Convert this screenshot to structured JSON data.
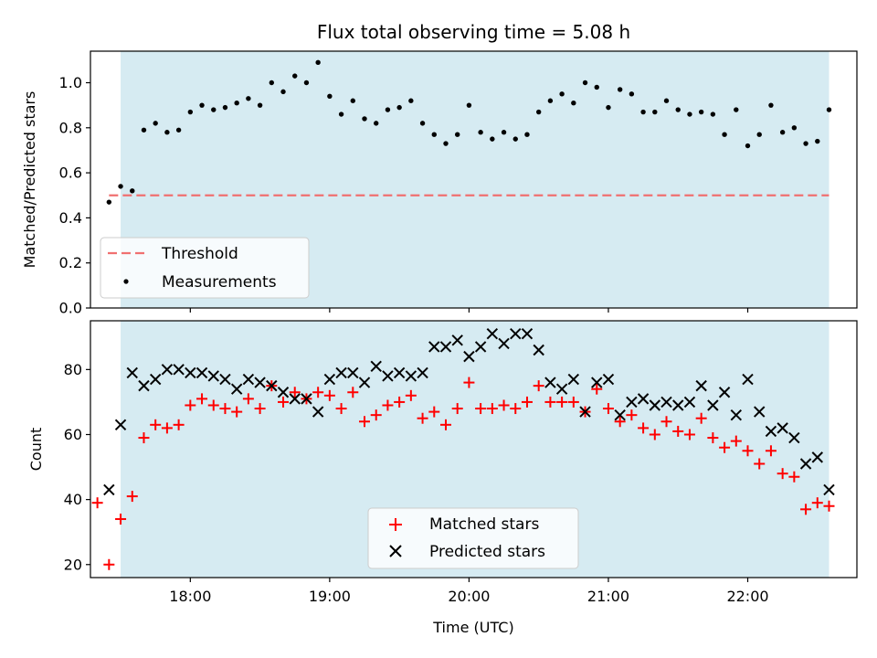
{
  "chart_data": [
    {
      "type": "scatter",
      "title": "Flux total observing time = 5.08 h",
      "xlabel": "",
      "ylabel": "Matched/Predicted stars",
      "xlim": [
        "17:17",
        "22:47"
      ],
      "ylim": [
        0,
        1.14
      ],
      "yticks": [
        "0.0",
        "0.2",
        "0.4",
        "0.6",
        "0.8",
        "1.0"
      ],
      "xticks": [
        "18:00",
        "19:00",
        "20:00",
        "21:00",
        "22:00"
      ],
      "shaded_span": [
        "17:30",
        "22:35"
      ],
      "threshold": {
        "name": "Threshold",
        "value": 0.5,
        "x_range": [
          "17:25",
          "22:35"
        ],
        "color": "#f07070"
      },
      "legend": {
        "position": "lower-left",
        "entries": [
          "Threshold",
          "Measurements"
        ]
      },
      "series": [
        {
          "name": "Measurements",
          "marker": "dot",
          "color": "#000000",
          "x": [
            "17:25",
            "17:30",
            "17:35",
            "17:40",
            "17:45",
            "17:50",
            "17:55",
            "18:00",
            "18:05",
            "18:10",
            "18:15",
            "18:20",
            "18:25",
            "18:30",
            "18:35",
            "18:40",
            "18:45",
            "18:50",
            "18:55",
            "19:00",
            "19:05",
            "19:10",
            "19:15",
            "19:20",
            "19:25",
            "19:30",
            "19:35",
            "19:40",
            "19:45",
            "19:50",
            "19:55",
            "20:00",
            "20:05",
            "20:10",
            "20:15",
            "20:20",
            "20:25",
            "20:30",
            "20:35",
            "20:40",
            "20:45",
            "20:50",
            "20:55",
            "21:00",
            "21:05",
            "21:10",
            "21:15",
            "21:20",
            "21:25",
            "21:30",
            "21:35",
            "21:40",
            "21:45",
            "21:50",
            "21:55",
            "22:00",
            "22:05",
            "22:10",
            "22:15",
            "22:20",
            "22:25",
            "22:30",
            "22:35"
          ],
          "y": [
            0.47,
            0.54,
            0.52,
            0.79,
            0.82,
            0.78,
            0.79,
            0.87,
            0.9,
            0.88,
            0.89,
            0.91,
            0.93,
            0.9,
            1.0,
            0.96,
            1.03,
            1.0,
            1.09,
            0.94,
            0.86,
            0.92,
            0.84,
            0.82,
            0.88,
            0.89,
            0.92,
            0.82,
            0.77,
            0.73,
            0.77,
            0.9,
            0.78,
            0.75,
            0.78,
            0.75,
            0.77,
            0.87,
            0.92,
            0.95,
            0.91,
            1.0,
            0.98,
            0.89,
            0.97,
            0.95,
            0.87,
            0.87,
            0.92,
            0.88,
            0.86,
            0.87,
            0.86,
            0.77,
            0.88,
            0.72,
            0.77,
            0.9,
            0.78,
            0.8,
            0.73,
            0.74,
            0.88
          ]
        }
      ]
    },
    {
      "type": "scatter",
      "title": "",
      "xlabel": "Time (UTC)",
      "ylabel": "Count",
      "xlim": [
        "17:17",
        "22:47"
      ],
      "ylim": [
        16,
        95
      ],
      "yticks": [
        "20",
        "40",
        "60",
        "80"
      ],
      "xticks": [
        "18:00",
        "19:00",
        "20:00",
        "21:00",
        "22:00"
      ],
      "shaded_span": [
        "17:30",
        "22:35"
      ],
      "legend": {
        "position": "lower-center",
        "entries": [
          "Matched stars",
          "Predicted stars"
        ]
      },
      "series": [
        {
          "name": "Matched stars",
          "marker": "plus",
          "color": "#ff0000",
          "x": [
            "17:20",
            "17:25",
            "17:30",
            "17:35",
            "17:40",
            "17:45",
            "17:50",
            "17:55",
            "18:00",
            "18:05",
            "18:10",
            "18:15",
            "18:20",
            "18:25",
            "18:30",
            "18:35",
            "18:40",
            "18:45",
            "18:50",
            "18:55",
            "19:00",
            "19:05",
            "19:10",
            "19:15",
            "19:20",
            "19:25",
            "19:30",
            "19:35",
            "19:40",
            "19:45",
            "19:50",
            "19:55",
            "20:00",
            "20:05",
            "20:10",
            "20:15",
            "20:20",
            "20:25",
            "20:30",
            "20:35",
            "20:40",
            "20:45",
            "20:50",
            "20:55",
            "21:00",
            "21:05",
            "21:10",
            "21:15",
            "21:20",
            "21:25",
            "21:30",
            "21:35",
            "21:40",
            "21:45",
            "21:50",
            "21:55",
            "22:00",
            "22:05",
            "22:10",
            "22:15",
            "22:20",
            "22:25",
            "22:30",
            "22:35"
          ],
          "y": [
            39,
            20,
            34,
            41,
            59,
            63,
            62,
            63,
            69,
            71,
            69,
            68,
            67,
            71,
            68,
            75,
            70,
            73,
            71,
            73,
            72,
            68,
            73,
            64,
            66,
            69,
            70,
            72,
            65,
            67,
            63,
            68,
            76,
            68,
            68,
            69,
            68,
            70,
            75,
            70,
            70,
            70,
            67,
            74,
            68,
            64,
            66,
            62,
            60,
            64,
            61,
            60,
            65,
            59,
            56,
            58,
            55,
            51,
            55,
            48,
            47,
            37,
            39,
            38
          ]
        },
        {
          "name": "Predicted stars",
          "marker": "x",
          "color": "#000000",
          "x": [
            "17:25",
            "17:30",
            "17:35",
            "17:40",
            "17:45",
            "17:50",
            "17:55",
            "18:00",
            "18:05",
            "18:10",
            "18:15",
            "18:20",
            "18:25",
            "18:30",
            "18:35",
            "18:40",
            "18:45",
            "18:50",
            "18:55",
            "19:00",
            "19:05",
            "19:10",
            "19:15",
            "19:20",
            "19:25",
            "19:30",
            "19:35",
            "19:40",
            "19:45",
            "19:50",
            "19:55",
            "20:00",
            "20:05",
            "20:10",
            "20:15",
            "20:20",
            "20:25",
            "20:30",
            "20:35",
            "20:40",
            "20:45",
            "20:50",
            "20:55",
            "21:00",
            "21:05",
            "21:10",
            "21:15",
            "21:20",
            "21:25",
            "21:30",
            "21:35",
            "21:40",
            "21:45",
            "21:50",
            "21:55",
            "22:00",
            "22:05",
            "22:10",
            "22:15",
            "22:20",
            "22:25",
            "22:30",
            "22:35"
          ],
          "y": [
            43,
            63,
            79,
            75,
            77,
            80,
            80,
            79,
            79,
            78,
            77,
            74,
            77,
            76,
            75,
            73,
            71,
            71,
            67,
            77,
            79,
            79,
            76,
            81,
            78,
            79,
            78,
            79,
            87,
            87,
            89,
            84,
            87,
            91,
            88,
            91,
            91,
            86,
            76,
            74,
            77,
            67,
            76,
            77,
            66,
            70,
            71,
            69,
            70,
            69,
            70,
            75,
            69,
            73,
            66,
            77,
            67,
            61,
            62,
            59,
            51,
            53,
            43
          ]
        }
      ]
    }
  ]
}
